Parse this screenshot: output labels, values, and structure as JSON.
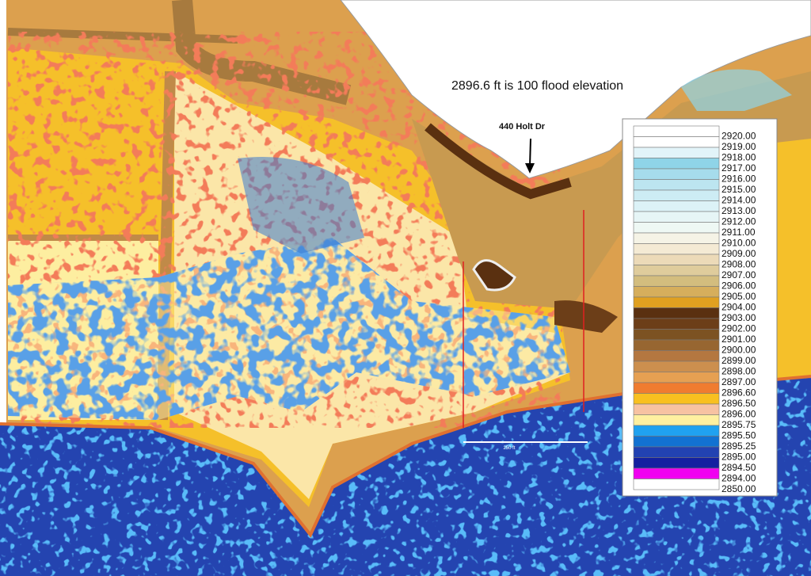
{
  "annotation": "2896.6 ft is 100 flood elevation",
  "address_label": "440 Holt Dr",
  "scale_label": "250 ft",
  "legend": {
    "items": [
      {
        "label": "2920.00",
        "color": "#ffffff"
      },
      {
        "label": "2919.00",
        "color": "#ffffff"
      },
      {
        "label": "2918.00",
        "color": "#e2f4f9"
      },
      {
        "label": "2917.00",
        "color": "#8fd4e8"
      },
      {
        "label": "2916.00",
        "color": "#a6dcec"
      },
      {
        "label": "2915.00",
        "color": "#bce5f0"
      },
      {
        "label": "2914.00",
        "color": "#cdecf4"
      },
      {
        "label": "2913.00",
        "color": "#dcf2f7"
      },
      {
        "label": "2912.00",
        "color": "#e6f5f6"
      },
      {
        "label": "2911.00",
        "color": "#eef8f4"
      },
      {
        "label": "2910.00",
        "color": "#f5f3e6"
      },
      {
        "label": "2909.00",
        "color": "#f4ead4"
      },
      {
        "label": "2908.00",
        "color": "#ecdab8"
      },
      {
        "label": "2907.00",
        "color": "#dfcc9c"
      },
      {
        "label": "2906.00",
        "color": "#d3bd7e"
      },
      {
        "label": "2905.00",
        "color": "#d6ae5c"
      },
      {
        "label": "2904.00",
        "color": "#e0a020"
      },
      {
        "label": "2903.00",
        "color": "#5a3010"
      },
      {
        "label": "2902.00",
        "color": "#6c3e18"
      },
      {
        "label": "2901.00",
        "color": "#7c5222"
      },
      {
        "label": "2900.00",
        "color": "#976631"
      },
      {
        "label": "2899.00",
        "color": "#b47740"
      },
      {
        "label": "2898.00",
        "color": "#cc8f4e"
      },
      {
        "label": "2897.00",
        "color": "#e6a052"
      },
      {
        "label": "2896.60",
        "color": "#f07c30"
      },
      {
        "label": "2896.50",
        "color": "#f8c020"
      },
      {
        "label": "2896.00",
        "color": "#f7c2a2"
      },
      {
        "label": "2895.75",
        "color": "#fff0a0"
      },
      {
        "label": "2895.50",
        "color": "#20a2f0"
      },
      {
        "label": "2895.25",
        "color": "#1272d2"
      },
      {
        "label": "2895.00",
        "color": "#2242b2"
      },
      {
        "label": "2894.50",
        "color": "#1420a0"
      },
      {
        "label": "2894.00",
        "color": "#f000f0"
      },
      {
        "label": "2850.00",
        "color": "#ffffff"
      }
    ]
  }
}
